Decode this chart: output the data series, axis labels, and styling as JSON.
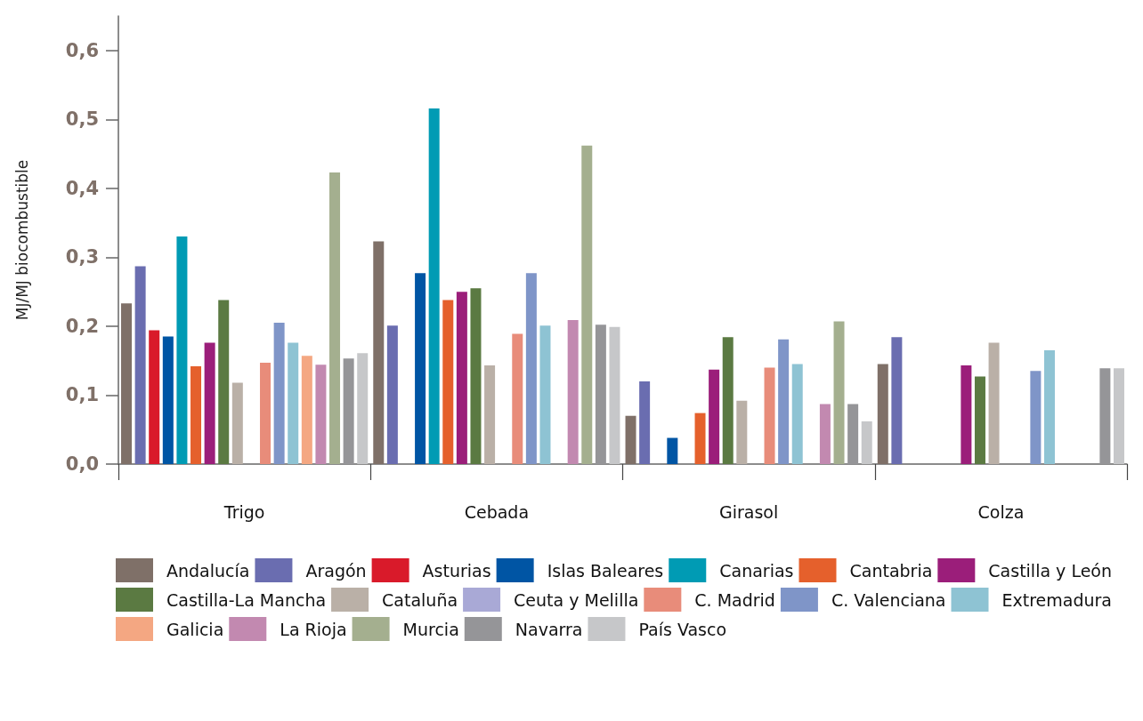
{
  "chart_data": {
    "type": "bar",
    "ylabel": "MJ/MJ biocombustible",
    "categories": [
      "Trigo",
      "Cebada",
      "Girasol",
      "Colza"
    ],
    "ylim": [
      0,
      0.65
    ],
    "yticks": [
      {
        "value": 0,
        "label": "0,0"
      },
      {
        "value": 0.1,
        "label": "0,1"
      },
      {
        "value": 0.2,
        "label": "0,2"
      },
      {
        "value": 0.3,
        "label": "0,3"
      },
      {
        "value": 0.4,
        "label": "0,4"
      },
      {
        "value": 0.5,
        "label": "0,5"
      },
      {
        "value": 0.6,
        "label": "0,6"
      }
    ],
    "grid": false,
    "legend": "bottom",
    "series": [
      {
        "name": "Andalucía",
        "color": "#7f7068",
        "values": [
          0.233,
          0.323,
          0.07,
          0.145
        ]
      },
      {
        "name": "Aragón",
        "color": "#6a6db0",
        "values": [
          0.287,
          0.201,
          0.12,
          0.184
        ]
      },
      {
        "name": "Asturias",
        "color": "#d91a2a",
        "values": [
          0.194,
          null,
          null,
          null
        ]
      },
      {
        "name": "Islas Baleares",
        "color": "#0055a4",
        "values": [
          0.185,
          0.277,
          0.038,
          null
        ]
      },
      {
        "name": "Canarias",
        "color": "#009bb4",
        "values": [
          0.33,
          0.516,
          null,
          null
        ]
      },
      {
        "name": "Cantabria",
        "color": "#e5602c",
        "values": [
          0.142,
          0.238,
          0.074,
          null
        ]
      },
      {
        "name": "Castilla y León",
        "color": "#9b1e7a",
        "values": [
          0.176,
          0.25,
          0.137,
          0.143
        ]
      },
      {
        "name": "Castilla-La Mancha",
        "color": "#5b7a42",
        "values": [
          0.238,
          0.255,
          0.184,
          0.127
        ]
      },
      {
        "name": "Cataluña",
        "color": "#bab0a7",
        "values": [
          0.118,
          0.143,
          0.092,
          0.176
        ]
      },
      {
        "name": "Ceuta y Melilla",
        "color": "#a9a9d6",
        "values": [
          null,
          null,
          null,
          null
        ]
      },
      {
        "name": "C. Madrid",
        "color": "#e88c7a",
        "values": [
          0.147,
          0.189,
          0.14,
          null
        ]
      },
      {
        "name": "C. Valenciana",
        "color": "#7f95c8",
        "values": [
          0.205,
          0.277,
          0.181,
          0.135
        ]
      },
      {
        "name": "Extremadura",
        "color": "#8ec3d3",
        "values": [
          0.176,
          0.201,
          0.145,
          0.165
        ]
      },
      {
        "name": "Galicia",
        "color": "#f4a782",
        "values": [
          0.157,
          null,
          null,
          null
        ]
      },
      {
        "name": "La Rioja",
        "color": "#c289b0",
        "values": [
          0.144,
          0.209,
          0.087,
          null
        ]
      },
      {
        "name": "Murcia",
        "color": "#a4af8f",
        "values": [
          0.423,
          0.462,
          0.207,
          null
        ]
      },
      {
        "name": "Navarra",
        "color": "#959598",
        "values": [
          0.153,
          0.202,
          0.087,
          0.139
        ]
      },
      {
        "name": "País Vasco",
        "color": "#c6c7c9",
        "values": [
          0.161,
          0.199,
          0.062,
          0.139
        ]
      }
    ]
  }
}
